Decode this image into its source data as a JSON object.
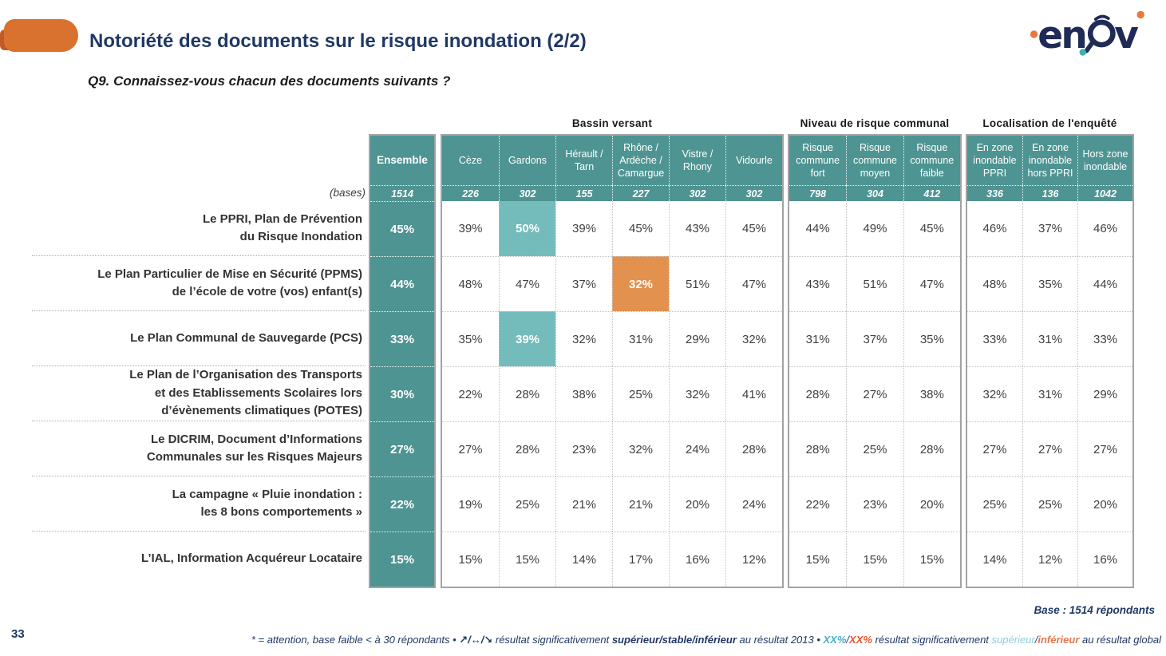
{
  "header": {
    "title": "Notoriété des documents sur le risque inondation (2/2)",
    "logo_name": "enov-logo"
  },
  "question": "Q9. Connaissez-vous chacun des documents suivants ?",
  "table": {
    "bases_label": "(bases)",
    "ensemble": {
      "label": "Ensemble",
      "base": "1514"
    },
    "groups": [
      {
        "title": "Bassin versant",
        "cols": [
          {
            "label": "Cèze",
            "base": "226"
          },
          {
            "label": "Gardons",
            "base": "302"
          },
          {
            "label": "Hérault / Tarn",
            "base": "155"
          },
          {
            "label": "Rhône / Ardèche / Camargue",
            "base": "227"
          },
          {
            "label": "Vistre / Rhony",
            "base": "302"
          },
          {
            "label": "Vidourle",
            "base": "302"
          }
        ]
      },
      {
        "title": "Niveau de risque communal",
        "cols": [
          {
            "label": "Risque commune fort",
            "base": "798"
          },
          {
            "label": "Risque commune moyen",
            "base": "304"
          },
          {
            "label": "Risque commune faible",
            "base": "412"
          }
        ]
      },
      {
        "title": "Localisation de l'enquêté",
        "cols": [
          {
            "label": "En zone inondable PPRI",
            "base": "336"
          },
          {
            "label": "En zone inondable hors PPRI",
            "base": "136"
          },
          {
            "label": "Hors zone inondable",
            "base": "1042"
          }
        ]
      }
    ],
    "rows": [
      {
        "label_lines": [
          "Le PPRI, Plan de Prévention",
          "du Risque Inondation"
        ],
        "ensemble": "45%",
        "values": [
          [
            "39%",
            "50%",
            "39%",
            "45%",
            "43%",
            "45%"
          ],
          [
            "44%",
            "49%",
            "45%"
          ],
          [
            "46%",
            "37%",
            "46%"
          ]
        ],
        "highlights": [
          {
            "g": 0,
            "c": 1,
            "s": "teal"
          }
        ]
      },
      {
        "label_lines": [
          "Le Plan Particulier de Mise en Sécurité (PPMS)",
          "de l’école de votre (vos) enfant(s)"
        ],
        "ensemble": "44%",
        "values": [
          [
            "48%",
            "47%",
            "37%",
            "32%",
            "51%",
            "47%"
          ],
          [
            "43%",
            "51%",
            "47%"
          ],
          [
            "48%",
            "35%",
            "44%"
          ]
        ],
        "highlights": [
          {
            "g": 0,
            "c": 3,
            "s": "orange"
          }
        ]
      },
      {
        "label_lines": [
          "Le Plan Communal de Sauvegarde (PCS)"
        ],
        "ensemble": "33%",
        "values": [
          [
            "35%",
            "39%",
            "32%",
            "31%",
            "29%",
            "32%"
          ],
          [
            "31%",
            "37%",
            "35%"
          ],
          [
            "33%",
            "31%",
            "33%"
          ]
        ],
        "highlights": [
          {
            "g": 0,
            "c": 1,
            "s": "teal"
          }
        ]
      },
      {
        "label_lines": [
          "Le Plan de l’Organisation des Transports",
          "et des Etablissements Scolaires lors",
          "d’évènements climatiques (POTES)"
        ],
        "ensemble": "30%",
        "values": [
          [
            "22%",
            "28%",
            "38%",
            "25%",
            "32%",
            "41%"
          ],
          [
            "28%",
            "27%",
            "38%"
          ],
          [
            "32%",
            "31%",
            "29%"
          ]
        ],
        "highlights": []
      },
      {
        "label_lines": [
          "Le DICRIM, Document d’Informations",
          "Communales sur les Risques Majeurs"
        ],
        "ensemble": "27%",
        "values": [
          [
            "27%",
            "28%",
            "23%",
            "32%",
            "24%",
            "28%"
          ],
          [
            "28%",
            "25%",
            "28%"
          ],
          [
            "27%",
            "27%",
            "27%"
          ]
        ],
        "highlights": []
      },
      {
        "label_lines": [
          "La campagne « Pluie inondation :",
          "les 8 bons comportements »"
        ],
        "ensemble": "22%",
        "values": [
          [
            "19%",
            "25%",
            "21%",
            "21%",
            "20%",
            "24%"
          ],
          [
            "22%",
            "23%",
            "20%"
          ],
          [
            "25%",
            "25%",
            "20%"
          ]
        ],
        "highlights": []
      },
      {
        "label_lines": [
          "L’IAL, Information Acquéreur Locataire"
        ],
        "ensemble": "15%",
        "values": [
          [
            "15%",
            "15%",
            "14%",
            "17%",
            "16%",
            "12%"
          ],
          [
            "15%",
            "15%",
            "15%"
          ],
          [
            "14%",
            "12%",
            "16%"
          ]
        ],
        "highlights": []
      }
    ]
  },
  "footer": {
    "page_number": "33",
    "base_note": "Base : 1514 répondants",
    "footnote": {
      "seg_base": "* = attention, base faible < à 30 répondants • ",
      "seg_arrows": "↗/↔/↘",
      "seg_mid1": " résultat significativement ",
      "seg_bold1": "supérieur/stable/inférieur",
      "seg_mid2": " au résultat 2013 • ",
      "seg_xx1": "XX%",
      "seg_slash1": "/",
      "seg_xx2": "XX%",
      "seg_mid3": " résultat significativement ",
      "seg_sup": "supérieur",
      "seg_slash2": "/",
      "seg_inf": "inférieur",
      "seg_end": " au résultat global"
    }
  },
  "colors": {
    "teal_header": "#4e9492",
    "teal_highlight": "#74bcbc",
    "orange_highlight": "#e2914e",
    "banner_orange": "#d9712f",
    "navy_title": "#203864",
    "logo_navy": "#1f2b56"
  }
}
